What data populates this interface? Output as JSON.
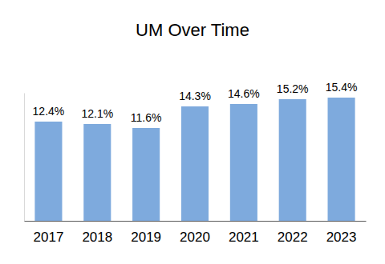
{
  "chart_data": {
    "type": "bar",
    "title": "UM Over Time",
    "categories": [
      "2017",
      "2018",
      "2019",
      "2020",
      "2021",
      "2022",
      "2023"
    ],
    "values": [
      12.4,
      12.1,
      11.6,
      14.3,
      14.6,
      15.2,
      15.4
    ],
    "value_labels": [
      "12.4%",
      "12.1%",
      "11.6%",
      "14.3%",
      "14.6%",
      "15.2%",
      "15.4%"
    ],
    "color": "#7eaadd",
    "ylim": [
      0,
      16
    ],
    "data_labels": true,
    "tick_labels": "x",
    "grid": false
  }
}
